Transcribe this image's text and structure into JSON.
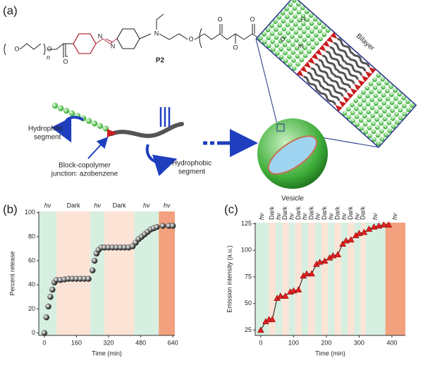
{
  "panel_labels": [
    "(a)",
    "(b)",
    "(c)"
  ],
  "diagram": {
    "molecule_label": "P2",
    "atoms": [
      "O",
      "O",
      "O",
      "N",
      "N",
      "N",
      "O",
      "O",
      "O",
      "O",
      "O",
      "H"
    ],
    "subscripts": [
      "n",
      "m"
    ],
    "bilayer": "Bilayer",
    "hydrophilic": [
      "Hydrophilic",
      "segment"
    ],
    "junction": [
      "Block-copolymer",
      "junction: azobenzene"
    ],
    "hydrophobic": [
      "Hydrophobic",
      "segment"
    ],
    "vesicle": "Vesicle"
  },
  "chart_data": [
    {
      "type": "scatter",
      "xlabel": "Time (min)",
      "ylabel": "Percent release",
      "xlim": [
        -28,
        650
      ],
      "ylim": [
        -2,
        101
      ],
      "xticks": [
        0,
        160,
        320,
        480,
        640
      ],
      "yticks": [
        0,
        20,
        40,
        60,
        80,
        100
      ],
      "color": "#333333",
      "bands": [
        {
          "start": -28,
          "end": 60,
          "label": "hν",
          "color": "#d6efe0"
        },
        {
          "start": 60,
          "end": 229,
          "label": "Dark",
          "color": "#fbe3d6"
        },
        {
          "start": 229,
          "end": 299,
          "label": "hν",
          "color": "#d6efe0"
        },
        {
          "start": 299,
          "end": 447,
          "label": "Dark",
          "color": "#fbe3d6"
        },
        {
          "start": 447,
          "end": 570,
          "label": "hν",
          "color": "#d6efe0"
        },
        {
          "start": 570,
          "end": 650,
          "label": "hν",
          "color": "#f2a07e"
        }
      ],
      "x": [
        0,
        10,
        20,
        30,
        40,
        50,
        60,
        80,
        100,
        120,
        140,
        160,
        180,
        200,
        220,
        240,
        250,
        260,
        270,
        285,
        300,
        320,
        340,
        360,
        380,
        400,
        420,
        440,
        455,
        470,
        485,
        500,
        515,
        530,
        545,
        560,
        590,
        620,
        640
      ],
      "values": [
        0,
        13,
        22,
        30,
        36,
        42,
        44,
        44,
        44.5,
        45,
        45,
        45,
        45,
        45,
        45,
        52,
        60,
        66,
        69,
        71,
        71,
        71,
        71,
        71,
        71,
        71,
        71,
        72,
        75,
        78,
        80,
        82,
        84,
        86,
        87,
        88,
        89,
        89,
        89
      ]
    },
    {
      "type": "line",
      "xlabel": "Time (min)",
      "ylabel": "Emission intensity (a.u.)",
      "xlim": [
        -17,
        441
      ],
      "ylim": [
        20,
        126
      ],
      "xticks": [
        0,
        100,
        200,
        300,
        400
      ],
      "yticks": [
        25,
        50,
        75,
        100,
        125
      ],
      "color": "#e02020",
      "bands": [
        {
          "start": -17,
          "end": 25,
          "label": "hν",
          "color": "#d6efe0"
        },
        {
          "start": 25,
          "end": 45,
          "label": "Dark",
          "color": "#fbe3d6"
        },
        {
          "start": 45,
          "end": 65,
          "label": "hν",
          "color": "#d6efe0"
        },
        {
          "start": 65,
          "end": 85,
          "label": "Dark",
          "color": "#fbe3d6"
        },
        {
          "start": 85,
          "end": 105,
          "label": "hν",
          "color": "#d6efe0"
        },
        {
          "start": 105,
          "end": 125,
          "label": "Dark",
          "color": "#fbe3d6"
        },
        {
          "start": 125,
          "end": 145,
          "label": "hν",
          "color": "#d6efe0"
        },
        {
          "start": 145,
          "end": 165,
          "label": "Dark",
          "color": "#fbe3d6"
        },
        {
          "start": 165,
          "end": 185,
          "label": "hν",
          "color": "#d6efe0"
        },
        {
          "start": 185,
          "end": 205,
          "label": "Dark",
          "color": "#fbe3d6"
        },
        {
          "start": 205,
          "end": 225,
          "label": "hν",
          "color": "#d6efe0"
        },
        {
          "start": 225,
          "end": 245,
          "label": "Dark",
          "color": "#fbe3d6"
        },
        {
          "start": 245,
          "end": 265,
          "label": "hν",
          "color": "#d6efe0"
        },
        {
          "start": 265,
          "end": 285,
          "label": "Dark",
          "color": "#fbe3d6"
        },
        {
          "start": 285,
          "end": 305,
          "label": "hν",
          "color": "#d6efe0"
        },
        {
          "start": 305,
          "end": 320,
          "label": "Dark",
          "color": "#fbe3d6"
        },
        {
          "start": 320,
          "end": 380,
          "label": "hν",
          "color": "#d6efe0"
        },
        {
          "start": 380,
          "end": 441,
          "label": "hν",
          "color": "#f2a07e"
        }
      ],
      "x": [
        0,
        15,
        25,
        35,
        50,
        60,
        75,
        90,
        100,
        115,
        130,
        140,
        155,
        170,
        180,
        195,
        210,
        220,
        235,
        250,
        260,
        275,
        290,
        300,
        315,
        330,
        345,
        360,
        375,
        390
      ],
      "values": [
        25,
        33,
        35,
        35,
        55,
        57,
        57,
        61,
        62,
        63,
        76,
        78,
        78,
        87,
        89,
        90,
        93,
        95,
        96,
        106,
        109,
        110,
        114,
        116,
        117,
        120,
        122,
        123,
        124,
        124
      ]
    }
  ]
}
